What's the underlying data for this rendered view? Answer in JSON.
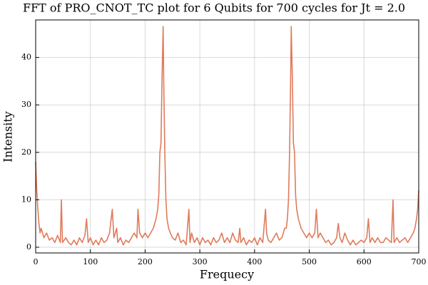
{
  "chart_data": {
    "type": "line",
    "title": "FFT of PRO_CNOT_TC plot for 6 Qubits for 700 cycles for Jt = 2.0",
    "x_label": "Frequecy",
    "y_label": "Intensity",
    "xlim": [
      0,
      700
    ],
    "ylim": [
      -1.2,
      47.9
    ],
    "xticks": [
      0,
      100,
      200,
      300,
      400,
      500,
      600,
      700
    ],
    "yticks": [
      0,
      10,
      20,
      30,
      40
    ],
    "grid": true,
    "series": [
      {
        "color": "#e07b5b",
        "x": [
          0,
          2,
          4,
          6,
          8,
          10,
          15,
          20,
          25,
          30,
          35,
          40,
          45,
          47,
          49,
          55,
          60,
          65,
          70,
          75,
          80,
          85,
          90,
          93,
          96,
          100,
          105,
          110,
          115,
          120,
          125,
          130,
          135,
          140,
          143,
          148,
          150,
          155,
          160,
          165,
          170,
          175,
          180,
          185,
          187,
          190,
          195,
          200,
          205,
          210,
          215,
          220,
          223,
          225,
          227,
          229,
          231,
          233,
          234,
          236,
          238,
          240,
          243,
          246,
          250,
          255,
          260,
          265,
          270,
          275,
          280,
          282,
          285,
          290,
          295,
          300,
          305,
          310,
          315,
          320,
          325,
          330,
          335,
          340,
          345,
          350,
          355,
          360,
          365,
          370,
          373,
          375,
          380,
          385,
          390,
          395,
          400,
          405,
          410,
          415,
          420,
          422,
          425,
          430,
          435,
          440,
          445,
          450,
          455,
          458,
          460,
          462,
          464,
          466,
          467,
          469,
          471,
          473,
          475,
          477,
          480,
          485,
          490,
          495,
          500,
          505,
          510,
          513,
          516,
          520,
          525,
          530,
          535,
          540,
          545,
          550,
          553,
          556,
          560,
          565,
          570,
          575,
          580,
          585,
          590,
          595,
          600,
          605,
          608,
          611,
          615,
          620,
          625,
          630,
          635,
          640,
          645,
          650,
          653,
          655,
          660,
          665,
          670,
          675,
          680,
          685,
          690,
          693,
          696,
          698,
          700
        ],
        "values": [
          18,
          12,
          8,
          5,
          3,
          4,
          2,
          3,
          1.5,
          2,
          1,
          2.5,
          1,
          10,
          1,
          2,
          1,
          0.5,
          1.5,
          0.5,
          2,
          1,
          2.5,
          6,
          1,
          2,
          0.5,
          1.5,
          0.5,
          2,
          1,
          1.5,
          3,
          8,
          2,
          4,
          1,
          2,
          0.5,
          1.5,
          1,
          2,
          3,
          2,
          8,
          3,
          2,
          3,
          2,
          3,
          4,
          6,
          8,
          11,
          20,
          22,
          36,
          46.5,
          35,
          20,
          10,
          6,
          4,
          3,
          2,
          1.5,
          3,
          1,
          1.5,
          0.5,
          8,
          1,
          3,
          1,
          2,
          0.5,
          2,
          1,
          1.5,
          0.5,
          2,
          1,
          1.5,
          3,
          1,
          2,
          1,
          3,
          1.5,
          1,
          4,
          1,
          2,
          0.5,
          1.5,
          1,
          2,
          0.5,
          2,
          1,
          8,
          3,
          1.5,
          1,
          2,
          3,
          1.5,
          2,
          4,
          4,
          6,
          10,
          20,
          36,
          46.5,
          36,
          22,
          20,
          11,
          8,
          6,
          4,
          3,
          2,
          3,
          2,
          3,
          8,
          2,
          3,
          2,
          1,
          1.5,
          0.5,
          1,
          2,
          5,
          2,
          1,
          3,
          1.5,
          0.5,
          1.5,
          0.5,
          1,
          1.5,
          1,
          2,
          6,
          1,
          2,
          1,
          2,
          1,
          1,
          2,
          1.5,
          1,
          10,
          1,
          2,
          1,
          1.5,
          2,
          1,
          2,
          3,
          4,
          6,
          8,
          12
        ]
      }
    ]
  }
}
